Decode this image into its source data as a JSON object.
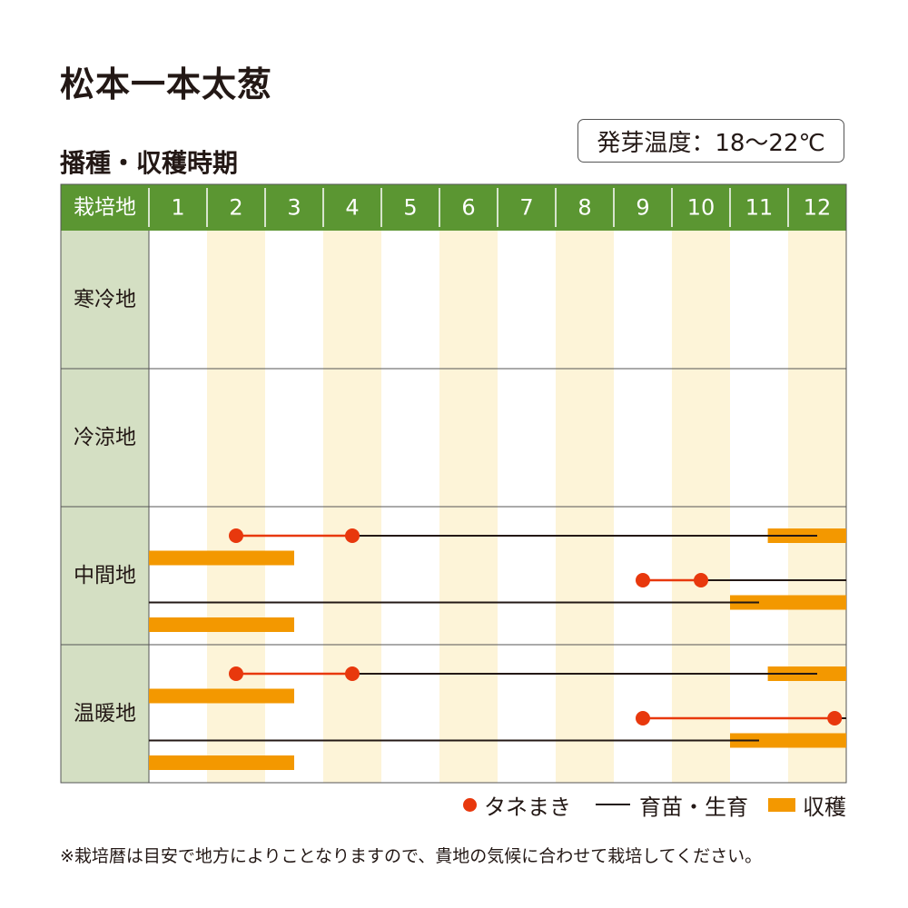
{
  "title": "松本一本太葱",
  "subtitle": "播種・収穫時期",
  "germination_temp": "発芽温度：18～22℃",
  "legend": {
    "sowing": "タネまき",
    "growing": "育苗・生育",
    "harvest": "収穫"
  },
  "note": "※栽培暦は目安で地方によりことなりますので、貴地の気候に合わせて栽培してください。",
  "colors": {
    "header_bg": "#5b9632",
    "region_bg": "#d4dfc3",
    "stripe": "#fdf4d8",
    "sowing": "#e8380d",
    "growing": "#231815",
    "harvest": "#f39800"
  },
  "chart_data": {
    "type": "table",
    "header_label": "栽培地",
    "months": [
      "1",
      "2",
      "3",
      "4",
      "5",
      "6",
      "7",
      "8",
      "9",
      "10",
      "11",
      "12"
    ],
    "regions": [
      "寒冷地",
      "冷涼地",
      "中間地",
      "温暖地"
    ],
    "schedules": [
      {
        "region": "中間地",
        "sowing": [
          2,
          4
        ],
        "growing": [
          4,
          12
        ],
        "harvest": [
          [
            11.65,
            12.9
          ]
        ]
      },
      {
        "region": "中間地",
        "sowing": [],
        "growing": [],
        "harvest": [
          [
            1,
            3.5
          ]
        ]
      },
      {
        "region": "中間地",
        "sowing": [
          9,
          10
        ],
        "growing": [
          10,
          12.9
        ],
        "harvest": []
      },
      {
        "region": "中間地",
        "sowing": [],
        "growing": [
          1,
          11
        ],
        "harvest": [
          [
            11,
            12.9
          ]
        ]
      },
      {
        "region": "中間地",
        "sowing": [],
        "growing": [],
        "harvest": [
          [
            1,
            3.5
          ]
        ]
      },
      {
        "region": "温暖地",
        "sowing": [
          2,
          4
        ],
        "growing": [
          4,
          12
        ],
        "harvest": [
          [
            11.65,
            12.9
          ]
        ]
      },
      {
        "region": "温暖地",
        "sowing": [],
        "growing": [],
        "harvest": [
          [
            1,
            3.5
          ]
        ]
      },
      {
        "region": "温暖地",
        "sowing": [
          9,
          12.3
        ],
        "growing": [
          12.3,
          12.9
        ],
        "harvest": []
      },
      {
        "region": "温暖地",
        "sowing": [],
        "growing": [
          1,
          11
        ],
        "harvest": [
          [
            11,
            12.9
          ]
        ]
      },
      {
        "region": "温暖地",
        "sowing": [],
        "growing": [],
        "harvest": [
          [
            1,
            3.5
          ]
        ]
      }
    ]
  }
}
